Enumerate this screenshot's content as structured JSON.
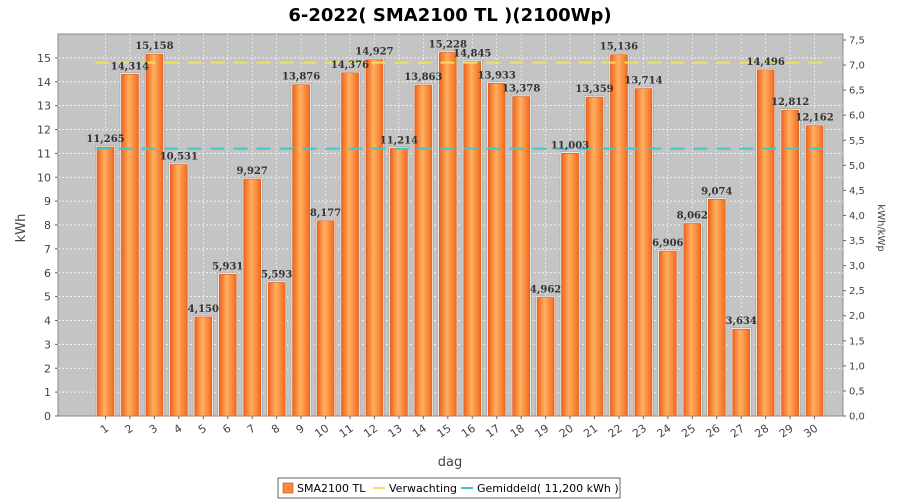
{
  "chart_data": {
    "type": "bar",
    "title": "6-2022( SMA2100 TL )(2100Wp)",
    "xlabel": "dag",
    "ylabel": "kWh",
    "y2label": "kWh/kWp",
    "ylim": [
      0,
      16
    ],
    "y2lim": [
      0,
      7.5
    ],
    "yticks": [
      "0",
      "1",
      "2",
      "3",
      "4",
      "5",
      "6",
      "7",
      "8",
      "9",
      "10",
      "11",
      "12",
      "13",
      "14",
      "15"
    ],
    "y2ticks": [
      "0,0",
      "0,5",
      "1,0",
      "1,5",
      "2,0",
      "2,5",
      "3,0",
      "3,5",
      "4,0",
      "4,5",
      "5,0",
      "5,5",
      "6,0",
      "6,5",
      "7,0",
      "7,5"
    ],
    "grid": true,
    "legend_position": "bottom",
    "categories": [
      "1",
      "2",
      "3",
      "4",
      "5",
      "6",
      "7",
      "8",
      "9",
      "10",
      "11",
      "12",
      "13",
      "14",
      "15",
      "16",
      "17",
      "18",
      "19",
      "20",
      "21",
      "22",
      "23",
      "24",
      "25",
      "26",
      "27",
      "28",
      "29",
      "30"
    ],
    "series": [
      {
        "name": "SMA2100 TL",
        "color": "#ff8c3a",
        "values": [
          11.265,
          14.314,
          15.158,
          10.531,
          4.15,
          5.931,
          9.927,
          5.593,
          13.876,
          8.177,
          14.376,
          14.927,
          11.214,
          13.863,
          15.228,
          14.845,
          13.933,
          13.378,
          4.962,
          11.003,
          13.359,
          15.136,
          13.714,
          6.906,
          8.062,
          9.074,
          3.634,
          14.496,
          12.812,
          12.162
        ],
        "labels": [
          "11,265",
          "14,314",
          "15,158",
          "10,531",
          "4,150",
          "5,931",
          "9,927",
          "5,593",
          "13,876",
          "8,177",
          "14,376",
          "14,927",
          "11,214",
          "13,863",
          "15,228",
          "14,845",
          "13,933",
          "13,378",
          "4,962",
          "11,003",
          "13,359",
          "15,136",
          "13,714",
          "6,906",
          "8,062",
          "9,074",
          "3,634",
          "14,496",
          "12,812",
          "12,162"
        ]
      }
    ],
    "reference_lines": [
      {
        "name": "Verwachting",
        "value": 14.8,
        "color": "#f0e060",
        "style": "dashed"
      },
      {
        "name": "Gemiddeld( 11,200 kWh )",
        "value": 11.2,
        "color": "#40c8c8",
        "style": "dashed"
      }
    ]
  }
}
